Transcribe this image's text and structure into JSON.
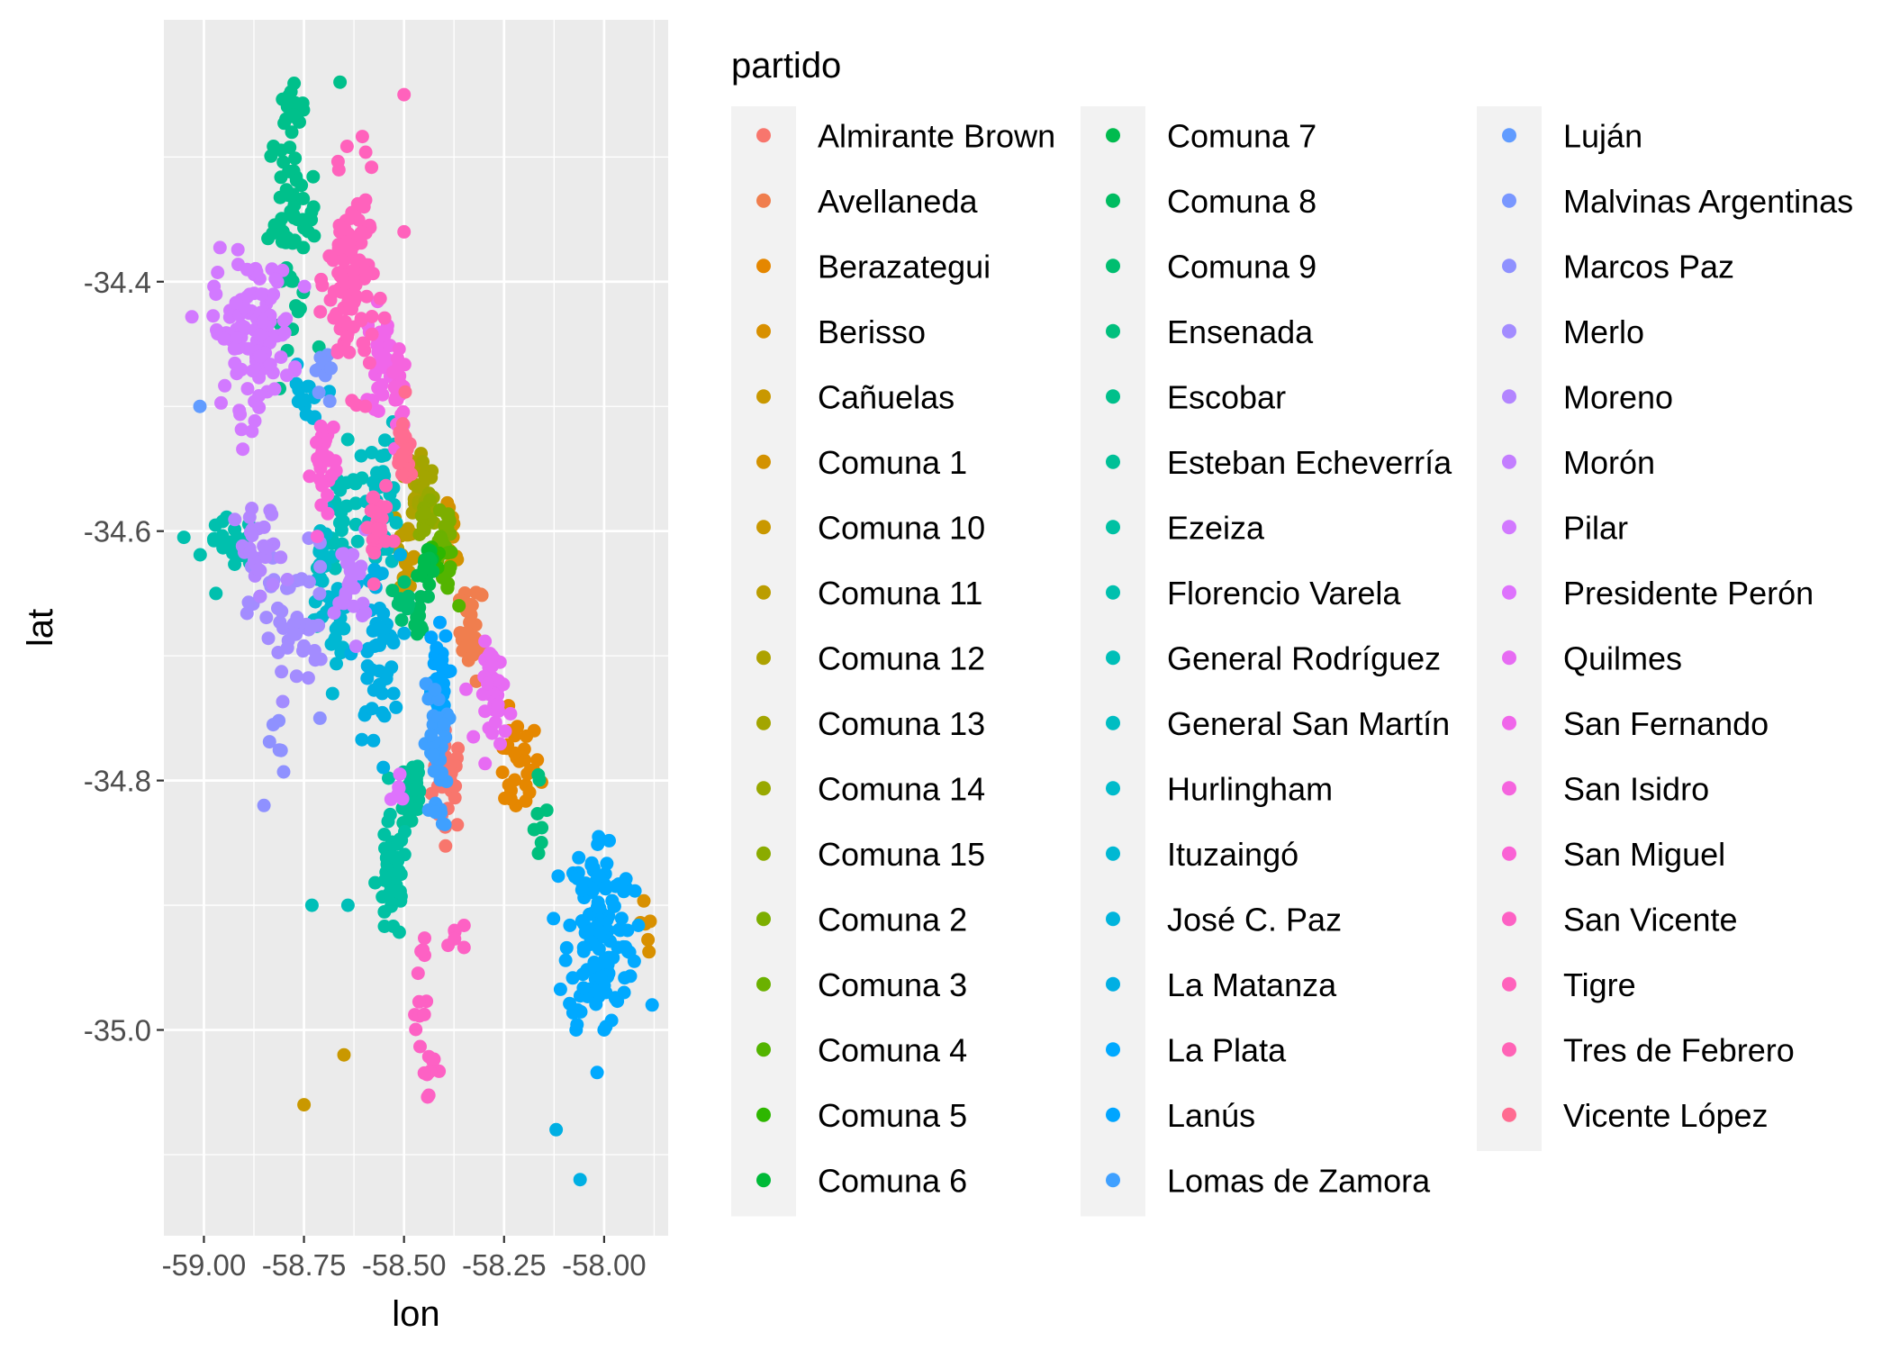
{
  "chart_data": {
    "type": "scatter",
    "xlabel": "lon",
    "ylabel": "lat",
    "xlim": [
      -59.1,
      -57.84
    ],
    "ylim": [
      -35.165,
      -34.19
    ],
    "x_ticks": [
      {
        "value": -59.0,
        "label": "-59.00"
      },
      {
        "value": -58.75,
        "label": "-58.75"
      },
      {
        "value": -58.5,
        "label": "-58.50"
      },
      {
        "value": -58.25,
        "label": "-58.25"
      },
      {
        "value": -58.0,
        "label": "-58.00"
      }
    ],
    "y_ticks": [
      {
        "value": -34.4,
        "label": "-34.4"
      },
      {
        "value": -34.6,
        "label": "-34.6"
      },
      {
        "value": -34.8,
        "label": "-34.8"
      },
      {
        "value": -35.0,
        "label": "-35.0"
      }
    ],
    "grid": true,
    "panel_background": "#ebebeb",
    "legend": {
      "title": "partido",
      "position": "right",
      "columns": 3
    },
    "series": [
      {
        "name": "Almirante Brown",
        "color": "#F8766D",
        "clusters": [
          [
            -58.39,
            -34.8,
            0.02,
            0.02,
            30
          ]
        ]
      },
      {
        "name": "Avellaneda",
        "color": "#F07E4E",
        "clusters": [
          [
            -58.33,
            -34.68,
            0.015,
            0.02,
            25
          ]
        ]
      },
      {
        "name": "Berazategui",
        "color": "#E58700",
        "clusters": [
          [
            -58.22,
            -34.79,
            0.03,
            0.02,
            30
          ]
        ]
      },
      {
        "name": "Berisso",
        "color": "#D89000",
        "clusters": [
          [
            -57.9,
            -34.93,
            0.01,
            0.02,
            6
          ]
        ],
        "points": [
          [
            -57.83,
            -34.955
          ]
        ]
      },
      {
        "name": "Cañuelas",
        "color": "#C99800",
        "clusters": [],
        "points": [
          [
            -58.75,
            -35.06
          ],
          [
            -58.65,
            -35.02
          ]
        ]
      },
      {
        "name": "Comuna 1",
        "color": "#D39200",
        "clusters": [
          [
            -58.38,
            -34.61,
            0.01,
            0.015,
            12
          ]
        ]
      },
      {
        "name": "Comuna 10",
        "color": "#C99800",
        "clusters": [
          [
            -58.49,
            -34.63,
            0.01,
            0.01,
            10
          ]
        ]
      },
      {
        "name": "Comuna 11",
        "color": "#BB9D00",
        "clusters": [
          [
            -58.5,
            -34.6,
            0.01,
            0.01,
            10
          ]
        ]
      },
      {
        "name": "Comuna 12",
        "color": "#ADA200",
        "clusters": [
          [
            -58.48,
            -34.56,
            0.015,
            0.015,
            14
          ]
        ]
      },
      {
        "name": "Comuna 13",
        "color": "#A3A500",
        "clusters": [
          [
            -58.45,
            -34.56,
            0.015,
            0.015,
            14
          ]
        ]
      },
      {
        "name": "Comuna 14",
        "color": "#98A800",
        "clusters": [
          [
            -58.43,
            -34.58,
            0.01,
            0.01,
            12
          ]
        ]
      },
      {
        "name": "Comuna 15",
        "color": "#8BAB00",
        "clusters": [
          [
            -58.45,
            -34.59,
            0.01,
            0.01,
            12
          ]
        ]
      },
      {
        "name": "Comuna 2",
        "color": "#7CAE00",
        "clusters": [
          [
            -58.39,
            -34.59,
            0.006,
            0.006,
            8
          ]
        ]
      },
      {
        "name": "Comuna 3",
        "color": "#6BB100",
        "clusters": [
          [
            -58.41,
            -34.61,
            0.006,
            0.006,
            8
          ]
        ]
      },
      {
        "name": "Comuna 4",
        "color": "#53B400",
        "clusters": [
          [
            -58.39,
            -34.64,
            0.01,
            0.01,
            10
          ]
        ]
      },
      {
        "name": "Comuna 5",
        "color": "#2EB700",
        "clusters": [
          [
            -58.42,
            -34.62,
            0.006,
            0.006,
            8
          ]
        ]
      },
      {
        "name": "Comuna 6",
        "color": "#00BA38",
        "clusters": [
          [
            -58.44,
            -34.62,
            0.006,
            0.006,
            8
          ]
        ]
      },
      {
        "name": "Comuna 7",
        "color": "#00BB4E",
        "clusters": [
          [
            -58.45,
            -34.63,
            0.008,
            0.008,
            10
          ]
        ]
      },
      {
        "name": "Comuna 8",
        "color": "#00BC61",
        "clusters": [
          [
            -58.46,
            -34.67,
            0.01,
            0.01,
            12
          ]
        ]
      },
      {
        "name": "Comuna 9",
        "color": "#00BE70",
        "clusters": [
          [
            -58.5,
            -34.65,
            0.01,
            0.01,
            10
          ]
        ]
      },
      {
        "name": "Ensenada",
        "color": "#00BF7D",
        "clusters": [
          [
            -58.16,
            -34.83,
            0.01,
            0.02,
            8
          ]
        ]
      },
      {
        "name": "Escobar",
        "color": "#00C08B",
        "clusters": [
          [
            -58.78,
            -34.35,
            0.03,
            0.04,
            60
          ],
          [
            -58.78,
            -34.28,
            0.02,
            0.02,
            12
          ]
        ],
        "points": [
          [
            -58.66,
            -34.24
          ]
        ]
      },
      {
        "name": "Esteban Echeverría",
        "color": "#00C097",
        "clusters": [
          [
            -58.48,
            -34.81,
            0.015,
            0.02,
            30
          ]
        ]
      },
      {
        "name": "Ezeiza",
        "color": "#00C1A3",
        "clusters": [
          [
            -58.53,
            -34.88,
            0.02,
            0.025,
            45
          ]
        ]
      },
      {
        "name": "Florencio Varela",
        "color": "#00C0AE",
        "clusters": [
          [
            -58.93,
            -34.61,
            0.03,
            0.01,
            20
          ]
        ],
        "points": [
          [
            -59.05,
            -34.605
          ],
          [
            -58.97,
            -34.65
          ]
        ]
      },
      {
        "name": "General Rodríguez",
        "color": "#00BFB8",
        "clusters": [
          [
            -58.65,
            -34.6,
            0.03,
            0.03,
            30
          ]
        ],
        "points": [
          [
            -58.73,
            -34.9
          ],
          [
            -58.64,
            -34.9
          ]
        ]
      },
      {
        "name": "General San Martín",
        "color": "#00BDC2",
        "clusters": [
          [
            -58.55,
            -34.57,
            0.02,
            0.03,
            35
          ]
        ]
      },
      {
        "name": "Hurlingham",
        "color": "#00BBCB",
        "clusters": [
          [
            -58.7,
            -34.63,
            0.015,
            0.02,
            20
          ]
        ]
      },
      {
        "name": "Ituzaingó",
        "color": "#00B8D3",
        "clusters": [
          [
            -58.67,
            -34.67,
            0.015,
            0.015,
            20
          ]
        ]
      },
      {
        "name": "José C. Paz",
        "color": "#00B4DC",
        "clusters": [
          [
            -58.75,
            -34.5,
            0.02,
            0.015,
            15
          ]
        ]
      },
      {
        "name": "La Matanza",
        "color": "#00AFE3",
        "clusters": [
          [
            -58.57,
            -34.7,
            0.03,
            0.04,
            50
          ]
        ],
        "points": [
          [
            -58.12,
            -35.08
          ],
          [
            -58.06,
            -35.12
          ]
        ]
      },
      {
        "name": "La Plata",
        "color": "#00A9FF",
        "clusters": [
          [
            -58.01,
            -34.92,
            0.04,
            0.04,
            140
          ]
        ],
        "points": [
          [
            -57.95,
            -34.97
          ],
          [
            -57.88,
            -34.98
          ],
          [
            -58.07,
            -35.0
          ],
          [
            -58.0,
            -35.0
          ]
        ]
      },
      {
        "name": "Lanús",
        "color": "#00A5FF",
        "clusters": [
          [
            -58.42,
            -34.72,
            0.015,
            0.02,
            35
          ]
        ]
      },
      {
        "name": "Lomas de Zamora",
        "color": "#3FA0FF",
        "clusters": [
          [
            -58.42,
            -34.78,
            0.015,
            0.03,
            35
          ]
        ]
      },
      {
        "name": "Luján",
        "color": "#619CFF",
        "clusters": [],
        "points": [
          [
            -59.01,
            -34.5
          ]
        ]
      },
      {
        "name": "Malvinas Argentinas",
        "color": "#7997FF",
        "clusters": [
          [
            -58.7,
            -34.47,
            0.01,
            0.02,
            10
          ]
        ]
      },
      {
        "name": "Marcos Paz",
        "color": "#8F91FF",
        "clusters": [
          [
            -58.82,
            -34.78,
            0.01,
            0.02,
            6
          ]
        ],
        "points": [
          [
            -58.85,
            -34.82
          ],
          [
            -58.71,
            -34.75
          ]
        ]
      },
      {
        "name": "Merlo",
        "color": "#A38CFF",
        "clusters": [
          [
            -58.78,
            -34.67,
            0.05,
            0.03,
            50
          ]
        ]
      },
      {
        "name": "Moreno",
        "color": "#B385FF",
        "clusters": [
          [
            -58.86,
            -34.62,
            0.03,
            0.02,
            30
          ]
        ]
      },
      {
        "name": "Morón",
        "color": "#C37EFF",
        "clusters": [
          [
            -58.63,
            -34.64,
            0.02,
            0.02,
            25
          ]
        ]
      },
      {
        "name": "Pilar",
        "color": "#D279FF",
        "clusters": [
          [
            -58.88,
            -34.44,
            0.05,
            0.03,
            110
          ]
        ],
        "points": [
          [
            -58.97,
            -34.41
          ],
          [
            -58.88,
            -34.52
          ]
        ]
      },
      {
        "name": "Presidente Perón",
        "color": "#DE72FD",
        "clusters": [
          [
            -58.51,
            -34.81,
            0.01,
            0.01,
            6
          ]
        ]
      },
      {
        "name": "Quilmes",
        "color": "#E76BF3",
        "clusters": [
          [
            -58.27,
            -34.73,
            0.02,
            0.02,
            40
          ]
        ]
      },
      {
        "name": "San Fernando",
        "color": "#F066EA",
        "clusters": [
          [
            -58.56,
            -34.46,
            0.015,
            0.02,
            30
          ]
        ]
      },
      {
        "name": "San Isidro",
        "color": "#F564DE",
        "clusters": [
          [
            -58.51,
            -34.49,
            0.01,
            0.015,
            20
          ]
        ]
      },
      {
        "name": "San Miguel",
        "color": "#FA62D5",
        "clusters": [
          [
            -58.7,
            -34.55,
            0.015,
            0.025,
            30
          ]
        ]
      },
      {
        "name": "San Vicente",
        "color": "#FD61C4",
        "clusters": [
          [
            -58.44,
            -35.03,
            0.01,
            0.01,
            10
          ],
          [
            -58.46,
            -34.97,
            0.01,
            0.03,
            12
          ],
          [
            -58.37,
            -34.92,
            0.01,
            0.01,
            6
          ]
        ]
      },
      {
        "name": "Tigre",
        "color": "#FF62BC",
        "clusters": [
          [
            -58.63,
            -34.4,
            0.03,
            0.04,
            110
          ]
        ],
        "points": [
          [
            -58.5,
            -34.25
          ],
          [
            -58.5,
            -34.36
          ],
          [
            -58.6,
            -34.34
          ]
        ]
      },
      {
        "name": "Tres de Febrero",
        "color": "#FF63B6",
        "clusters": [
          [
            -58.57,
            -34.6,
            0.015,
            0.02,
            25
          ]
        ]
      },
      {
        "name": "Vicente López",
        "color": "#FF6C91",
        "clusters": [
          [
            -58.5,
            -34.54,
            0.01,
            0.02,
            20
          ]
        ]
      }
    ]
  }
}
